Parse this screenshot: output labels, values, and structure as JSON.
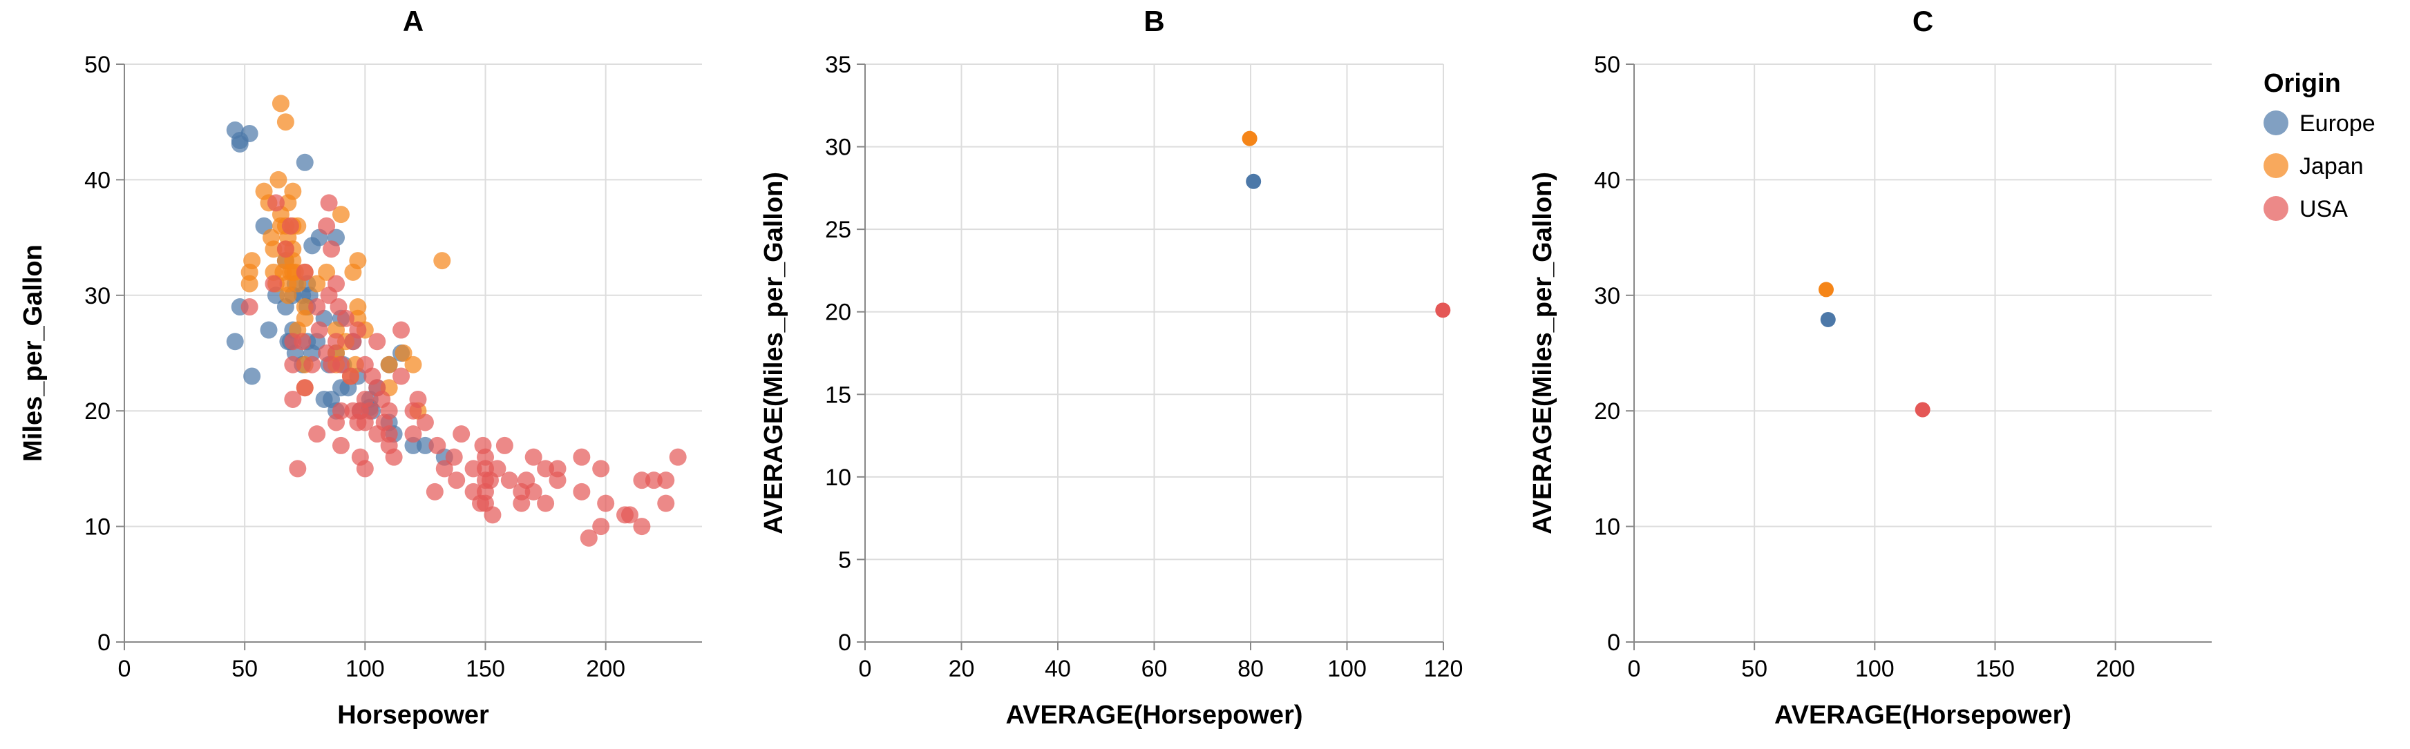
{
  "colors": {
    "Europe": "#4c78a8",
    "Japan": "#f58518",
    "USA": "#e45756",
    "grid": "#dddddd",
    "axis": "#888888"
  },
  "legend": {
    "title": "Origin",
    "items": [
      {
        "label": "Europe",
        "color": "#4c78a8"
      },
      {
        "label": "Japan",
        "color": "#f58518"
      },
      {
        "label": "USA",
        "color": "#e45756"
      }
    ]
  },
  "chart_data": [
    {
      "panel": "A",
      "type": "scatter",
      "title": "A",
      "xlabel": "Horsepower",
      "ylabel": "Miles_per_Gallon",
      "xlim": [
        0,
        240
      ],
      "ylim": [
        0,
        50
      ],
      "xticks": [
        0,
        50,
        100,
        150,
        200
      ],
      "yticks": [
        0,
        10,
        20,
        30,
        40,
        50
      ],
      "grid": true,
      "opacity": 0.7,
      "series": [
        {
          "name": "Europe",
          "points": [
            [
              46,
              26
            ],
            [
              46,
              44.3
            ],
            [
              48,
              43.1
            ],
            [
              48,
              43.4
            ],
            [
              48,
              29
            ],
            [
              52,
              44
            ],
            [
              53,
              23
            ],
            [
              58,
              36
            ],
            [
              60,
              27
            ],
            [
              63,
              30
            ],
            [
              67,
              29
            ],
            [
              67,
              33
            ],
            [
              68,
              26
            ],
            [
              69,
              26
            ],
            [
              70,
              30
            ],
            [
              70,
              27
            ],
            [
              71,
              25
            ],
            [
              71,
              31
            ],
            [
              74,
              30
            ],
            [
              74,
              24
            ],
            [
              75,
              41.5
            ],
            [
              76,
              29
            ],
            [
              76,
              26
            ],
            [
              76,
              31
            ],
            [
              77,
              30
            ],
            [
              78,
              25
            ],
            [
              78,
              34.3
            ],
            [
              80,
              26
            ],
            [
              81,
              35
            ],
            [
              83,
              21
            ],
            [
              83,
              28
            ],
            [
              85,
              24
            ],
            [
              86,
              21
            ],
            [
              88,
              20
            ],
            [
              88,
              25
            ],
            [
              88,
              35
            ],
            [
              90,
              28
            ],
            [
              90,
              22
            ],
            [
              91,
              24
            ],
            [
              93,
              22
            ],
            [
              95,
              26
            ],
            [
              97,
              23
            ],
            [
              98,
              20
            ],
            [
              102,
              21
            ],
            [
              102,
              20.3
            ],
            [
              103,
              20
            ],
            [
              105,
              22
            ],
            [
              110,
              19
            ],
            [
              110,
              24
            ],
            [
              112,
              18
            ],
            [
              115,
              25
            ],
            [
              120,
              17
            ],
            [
              125,
              17
            ],
            [
              133,
              16
            ]
          ]
        },
        {
          "name": "Japan",
          "points": [
            [
              52,
              32
            ],
            [
              52,
              31
            ],
            [
              53,
              33
            ],
            [
              58,
              39
            ],
            [
              60,
              38
            ],
            [
              61,
              35
            ],
            [
              62,
              34
            ],
            [
              62,
              32
            ],
            [
              63,
              31
            ],
            [
              64,
              40
            ],
            [
              65,
              36
            ],
            [
              65,
              46.6
            ],
            [
              65,
              37
            ],
            [
              66,
              32
            ],
            [
              67,
              45
            ],
            [
              67,
              33
            ],
            [
              67,
              34
            ],
            [
              67,
              36
            ],
            [
              68,
              35
            ],
            [
              68,
              38
            ],
            [
              68,
              31
            ],
            [
              68,
              30
            ],
            [
              69,
              32
            ],
            [
              70,
              39
            ],
            [
              70,
              36
            ],
            [
              70,
              32
            ],
            [
              70,
              33
            ],
            [
              70,
              34
            ],
            [
              71,
              32
            ],
            [
              72,
              31
            ],
            [
              72,
              27
            ],
            [
              72,
              36
            ],
            [
              75,
              29
            ],
            [
              75,
              32
            ],
            [
              75,
              28
            ],
            [
              75,
              24
            ],
            [
              75,
              22
            ],
            [
              80,
              31
            ],
            [
              84,
              32
            ],
            [
              88,
              25
            ],
            [
              88,
              27
            ],
            [
              88,
              24
            ],
            [
              90,
              37
            ],
            [
              92,
              26
            ],
            [
              94,
              23
            ],
            [
              95,
              32
            ],
            [
              96,
              24
            ],
            [
              97,
              29
            ],
            [
              97,
              28
            ],
            [
              97,
              33
            ],
            [
              100,
              27
            ],
            [
              110,
              22
            ],
            [
              110,
              24
            ],
            [
              116,
              25
            ],
            [
              120,
              24
            ],
            [
              122,
              20
            ],
            [
              132,
              33
            ]
          ]
        },
        {
          "name": "USA",
          "points": [
            [
              52,
              29
            ],
            [
              62,
              31
            ],
            [
              63,
              38
            ],
            [
              67,
              34
            ],
            [
              69,
              36
            ],
            [
              70,
              24
            ],
            [
              70,
              26
            ],
            [
              70,
              21
            ],
            [
              72,
              15
            ],
            [
              74,
              26
            ],
            [
              75,
              32
            ],
            [
              75,
              22
            ],
            [
              78,
              24
            ],
            [
              80,
              18
            ],
            [
              80,
              29
            ],
            [
              81,
              27
            ],
            [
              84,
              25
            ],
            [
              84,
              36
            ],
            [
              85,
              30
            ],
            [
              85,
              38
            ],
            [
              86,
              34
            ],
            [
              86,
              24
            ],
            [
              88,
              31
            ],
            [
              88,
              26
            ],
            [
              88,
              19
            ],
            [
              89,
              29
            ],
            [
              90,
              20
            ],
            [
              90,
              17
            ],
            [
              90,
              24
            ],
            [
              92,
              28
            ],
            [
              94,
              23
            ],
            [
              95,
              20
            ],
            [
              95,
              26
            ],
            [
              97,
              27
            ],
            [
              97,
              19
            ],
            [
              98,
              20
            ],
            [
              98,
              16
            ],
            [
              100,
              19
            ],
            [
              100,
              15
            ],
            [
              100,
              21
            ],
            [
              100,
              24
            ],
            [
              102,
              20
            ],
            [
              103,
              23
            ],
            [
              105,
              18
            ],
            [
              105,
              26
            ],
            [
              105,
              22
            ],
            [
              107,
              21
            ],
            [
              108,
              19
            ],
            [
              110,
              20
            ],
            [
              110,
              18
            ],
            [
              110,
              17
            ],
            [
              112,
              16
            ],
            [
              115,
              27
            ],
            [
              115,
              23
            ],
            [
              120,
              20
            ],
            [
              120,
              18
            ],
            [
              122,
              21
            ],
            [
              125,
              19
            ],
            [
              129,
              13
            ],
            [
              130,
              17
            ],
            [
              133,
              15
            ],
            [
              137,
              16
            ],
            [
              138,
              14
            ],
            [
              140,
              18
            ],
            [
              145,
              15
            ],
            [
              145,
              13
            ],
            [
              148,
              12
            ],
            [
              149,
              17
            ],
            [
              150,
              16
            ],
            [
              150,
              14
            ],
            [
              150,
              12
            ],
            [
              150,
              13
            ],
            [
              150,
              15
            ],
            [
              152,
              14
            ],
            [
              153,
              11
            ],
            [
              155,
              15
            ],
            [
              158,
              17
            ],
            [
              160,
              14
            ],
            [
              165,
              13
            ],
            [
              165,
              12
            ],
            [
              167,
              14
            ],
            [
              170,
              16
            ],
            [
              170,
              13
            ],
            [
              175,
              15
            ],
            [
              175,
              12
            ],
            [
              180,
              14
            ],
            [
              180,
              15
            ],
            [
              190,
              13
            ],
            [
              190,
              16
            ],
            [
              193,
              9
            ],
            [
              198,
              10
            ],
            [
              198,
              15
            ],
            [
              200,
              12
            ],
            [
              208,
              11
            ],
            [
              210,
              11
            ],
            [
              215,
              14
            ],
            [
              215,
              10
            ],
            [
              220,
              14
            ],
            [
              225,
              14
            ],
            [
              225,
              12
            ],
            [
              230,
              16
            ]
          ]
        }
      ]
    },
    {
      "panel": "B",
      "type": "scatter",
      "title": "B",
      "xlabel": "AVERAGE(Horsepower)",
      "ylabel": "AVERAGE(Miles_per_Gallon)",
      "xlim": [
        0,
        120
      ],
      "ylim": [
        0,
        35
      ],
      "xticks": [
        0,
        20,
        40,
        60,
        80,
        100,
        120
      ],
      "yticks": [
        0,
        5,
        10,
        15,
        20,
        25,
        30,
        35
      ],
      "grid": true,
      "opacity": 1,
      "series": [
        {
          "name": "Europe",
          "points": [
            [
              80.6,
              27.9
            ]
          ]
        },
        {
          "name": "Japan",
          "points": [
            [
              79.8,
              30.5
            ]
          ]
        },
        {
          "name": "USA",
          "points": [
            [
              119.9,
              20.1
            ]
          ]
        }
      ]
    },
    {
      "panel": "C",
      "type": "scatter",
      "title": "C",
      "xlabel": "AVERAGE(Horsepower)",
      "ylabel": "AVERAGE(Miles_per_Gallon)",
      "xlim": [
        0,
        240
      ],
      "ylim": [
        0,
        50
      ],
      "xticks": [
        0,
        50,
        100,
        150,
        200
      ],
      "yticks": [
        0,
        10,
        20,
        30,
        40,
        50
      ],
      "grid": true,
      "opacity": 1,
      "series": [
        {
          "name": "Europe",
          "points": [
            [
              80.6,
              27.9
            ]
          ]
        },
        {
          "name": "Japan",
          "points": [
            [
              79.8,
              30.5
            ]
          ]
        },
        {
          "name": "USA",
          "points": [
            [
              119.9,
              20.1
            ]
          ]
        }
      ]
    }
  ]
}
